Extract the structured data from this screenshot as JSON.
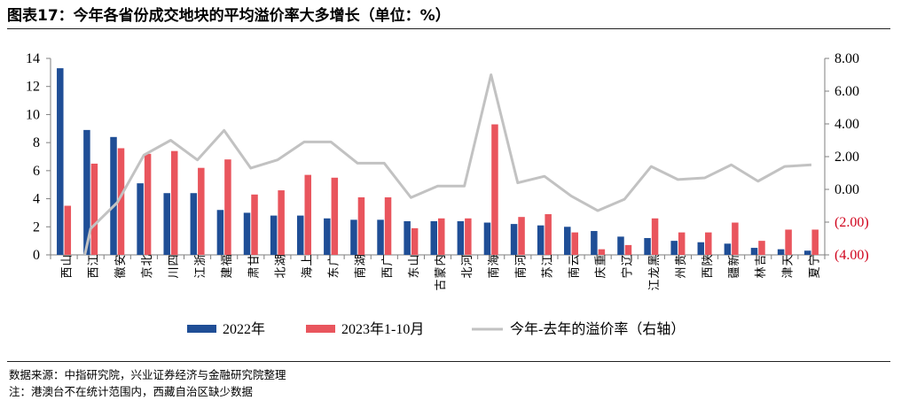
{
  "title": "图表17：今年各省份成交地块的平均溢价率大多增长（单位：%）",
  "footer": {
    "source": "数据来源：中指研究院，兴业证券经济与金融研究院整理",
    "note": "注：港澳台不在统计范围内，西藏自治区缺少数据"
  },
  "colors": {
    "series_2022": "#1f4e96",
    "series_2023": "#e9555d",
    "series_diff": "#c2c2c2"
  },
  "chart_data": {
    "type": "bar",
    "categories": [
      "山西",
      "江西",
      "安徽",
      "北京",
      "四川",
      "浙江",
      "福建",
      "甘肃",
      "湖北",
      "上海",
      "广东",
      "湖南",
      "广西",
      "山东",
      "内蒙古",
      "河北",
      "海南",
      "河南",
      "江苏",
      "云南",
      "重庆",
      "辽宁",
      "黑龙江",
      "贵州",
      "陕西",
      "新疆",
      "吉林",
      "天津",
      "宁夏"
    ],
    "series": [
      {
        "name": "2022年",
        "type": "bar",
        "axis": "left",
        "values": [
          13.3,
          8.9,
          8.4,
          5.1,
          4.4,
          4.4,
          3.2,
          3.0,
          2.8,
          2.8,
          2.6,
          2.5,
          2.5,
          2.4,
          2.4,
          2.4,
          2.3,
          2.2,
          2.1,
          2.0,
          1.7,
          1.3,
          1.2,
          1.0,
          0.9,
          0.8,
          0.5,
          0.4,
          0.3
        ]
      },
      {
        "name": "2023年1-10月",
        "type": "bar",
        "axis": "left",
        "values": [
          3.5,
          6.5,
          7.6,
          7.2,
          7.4,
          6.2,
          6.8,
          4.3,
          4.6,
          5.7,
          5.5,
          4.1,
          4.1,
          1.9,
          2.6,
          2.6,
          9.3,
          2.7,
          2.9,
          1.6,
          0.4,
          0.7,
          2.6,
          1.6,
          1.6,
          2.3,
          1.0,
          1.8,
          1.8
        ]
      },
      {
        "name": "今年-去年的溢价率（右轴）",
        "type": "line",
        "axis": "right",
        "values": [
          -9.8,
          -2.4,
          -0.8,
          2.1,
          3.0,
          1.8,
          3.6,
          1.3,
          1.8,
          2.9,
          2.9,
          1.6,
          1.6,
          -0.5,
          0.2,
          0.2,
          7.0,
          0.4,
          0.8,
          -0.4,
          -1.3,
          -0.6,
          1.4,
          0.6,
          0.7,
          1.5,
          0.5,
          1.4,
          1.5
        ]
      }
    ],
    "left_axis": {
      "min": 0,
      "max": 14,
      "ticks": [
        "0",
        "2",
        "4",
        "6",
        "8",
        "10",
        "12",
        "14"
      ]
    },
    "right_axis": {
      "min": -4,
      "max": 8,
      "ticks": [
        {
          "value": -4,
          "label": "(4.00)",
          "negative": true
        },
        {
          "value": -2,
          "label": "(2.00)",
          "negative": true
        },
        {
          "value": 0,
          "label": "0.00",
          "negative": false
        },
        {
          "value": 2,
          "label": "2.00",
          "negative": false
        },
        {
          "value": 4,
          "label": "4.00",
          "negative": false
        },
        {
          "value": 6,
          "label": "6.00",
          "negative": false
        },
        {
          "value": 8,
          "label": "8.00",
          "negative": false
        }
      ]
    },
    "legend_position": "bottom",
    "grid": false
  }
}
